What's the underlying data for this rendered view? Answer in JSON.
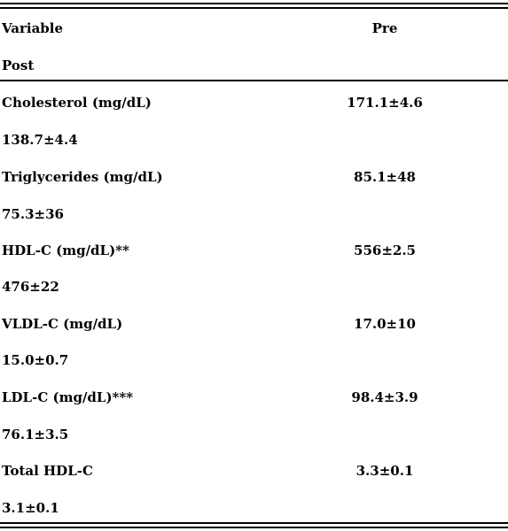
{
  "header": {
    "col1": "Variable",
    "col2": "Pre",
    "col3": "Post"
  },
  "rows": [
    {
      "variable": "Cholesterol (mg/dL)",
      "pre": "171.1±4.6",
      "post": "138.7±4.4"
    },
    {
      "variable": "Triglycerides (mg/dL)",
      "pre": "85.1±48",
      "post": "75.3±36"
    },
    {
      "variable": "HDL-C (mg/dL)**",
      "pre": "556±2.5",
      "post": "476±22"
    },
    {
      "variable": "VLDL-C (mg/dL)",
      "pre": "17.0±10",
      "post": "15.0±0.7"
    },
    {
      "variable": "LDL-C (mg/dL)***",
      "pre": "98.4±3.9",
      "post": "76.1±3.5"
    },
    {
      "variable": "Total HDL-C",
      "pre": "3.3±0.1",
      "post": "3.1±0.1"
    }
  ]
}
